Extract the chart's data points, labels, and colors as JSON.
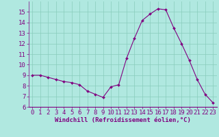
{
  "x": [
    0,
    1,
    2,
    3,
    4,
    5,
    6,
    7,
    8,
    9,
    10,
    11,
    12,
    13,
    14,
    15,
    16,
    17,
    18,
    19,
    20,
    21,
    22,
    23
  ],
  "y": [
    9.0,
    9.0,
    8.8,
    8.6,
    8.4,
    8.3,
    8.1,
    7.5,
    7.2,
    6.9,
    7.9,
    8.1,
    10.6,
    12.5,
    14.2,
    14.8,
    15.3,
    15.2,
    13.5,
    12.0,
    10.4,
    8.6,
    7.2,
    6.4
  ],
  "line_color": "#800080",
  "marker_color": "#800080",
  "bg_color": "#b0e8e0",
  "grid_color": "#88ccbb",
  "xlabel": "Windchill (Refroidissement éolien,°C)",
  "xlabel_color": "#800080",
  "tick_color": "#800080",
  "ylim": [
    6,
    16
  ],
  "xlim": [
    -0.5,
    23.5
  ],
  "yticks": [
    6,
    7,
    8,
    9,
    10,
    11,
    12,
    13,
    14,
    15
  ],
  "xticks": [
    0,
    1,
    2,
    3,
    4,
    5,
    6,
    7,
    8,
    9,
    10,
    11,
    12,
    13,
    14,
    15,
    16,
    17,
    18,
    19,
    20,
    21,
    22,
    23
  ],
  "font_size": 6.5,
  "xlabel_fontsize": 6.5,
  "lw": 0.8,
  "marker_size": 2.0
}
